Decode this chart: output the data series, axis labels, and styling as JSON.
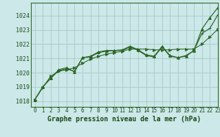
{
  "title": "Graphe pression niveau de la mer (hPa)",
  "background_color": "#cce8e8",
  "grid_color": "#aacccc",
  "line_color": "#2d6628",
  "xlim": [
    -0.5,
    23
  ],
  "ylim": [
    1017.6,
    1024.9
  ],
  "yticks": [
    1018,
    1019,
    1020,
    1021,
    1022,
    1023,
    1024
  ],
  "xticks": [
    0,
    1,
    2,
    3,
    4,
    5,
    6,
    7,
    8,
    9,
    10,
    11,
    12,
    13,
    14,
    15,
    16,
    17,
    18,
    19,
    20,
    21,
    22,
    23
  ],
  "series": [
    {
      "y": [
        1018.1,
        1019.0,
        1019.6,
        1020.2,
        1020.35,
        1020.05,
        1021.05,
        1021.15,
        1021.45,
        1021.55,
        1021.55,
        1021.6,
        1021.85,
        1021.6,
        1021.25,
        1021.15,
        1021.85,
        1021.2,
        1021.05,
        1021.15,
        1021.55,
        1023.05,
        1023.85,
        1024.55
      ],
      "marker": "^",
      "lw": 0.9
    },
    {
      "y": [
        1018.1,
        1019.0,
        1019.6,
        1020.15,
        1020.25,
        1020.1,
        1021.05,
        1021.1,
        1021.4,
        1021.5,
        1021.55,
        1021.55,
        1021.8,
        1021.55,
        1021.2,
        1021.1,
        1021.8,
        1021.15,
        1021.05,
        1021.2,
        1021.55,
        1022.75,
        1023.1,
        1024.05
      ],
      "marker": "+",
      "lw": 0.9
    },
    {
      "y": [
        1018.1,
        1018.95,
        1019.75,
        1020.1,
        1020.2,
        1020.35,
        1020.65,
        1020.95,
        1021.15,
        1021.3,
        1021.4,
        1021.5,
        1021.65,
        1021.65,
        1021.65,
        1021.6,
        1021.6,
        1021.6,
        1021.65,
        1021.65,
        1021.65,
        1022.0,
        1022.5,
        1023.05
      ],
      "marker": "D",
      "lw": 0.8
    }
  ],
  "title_fontsize": 7,
  "tick_fontsize": 5.5,
  "ylabel_fontsize": 6
}
